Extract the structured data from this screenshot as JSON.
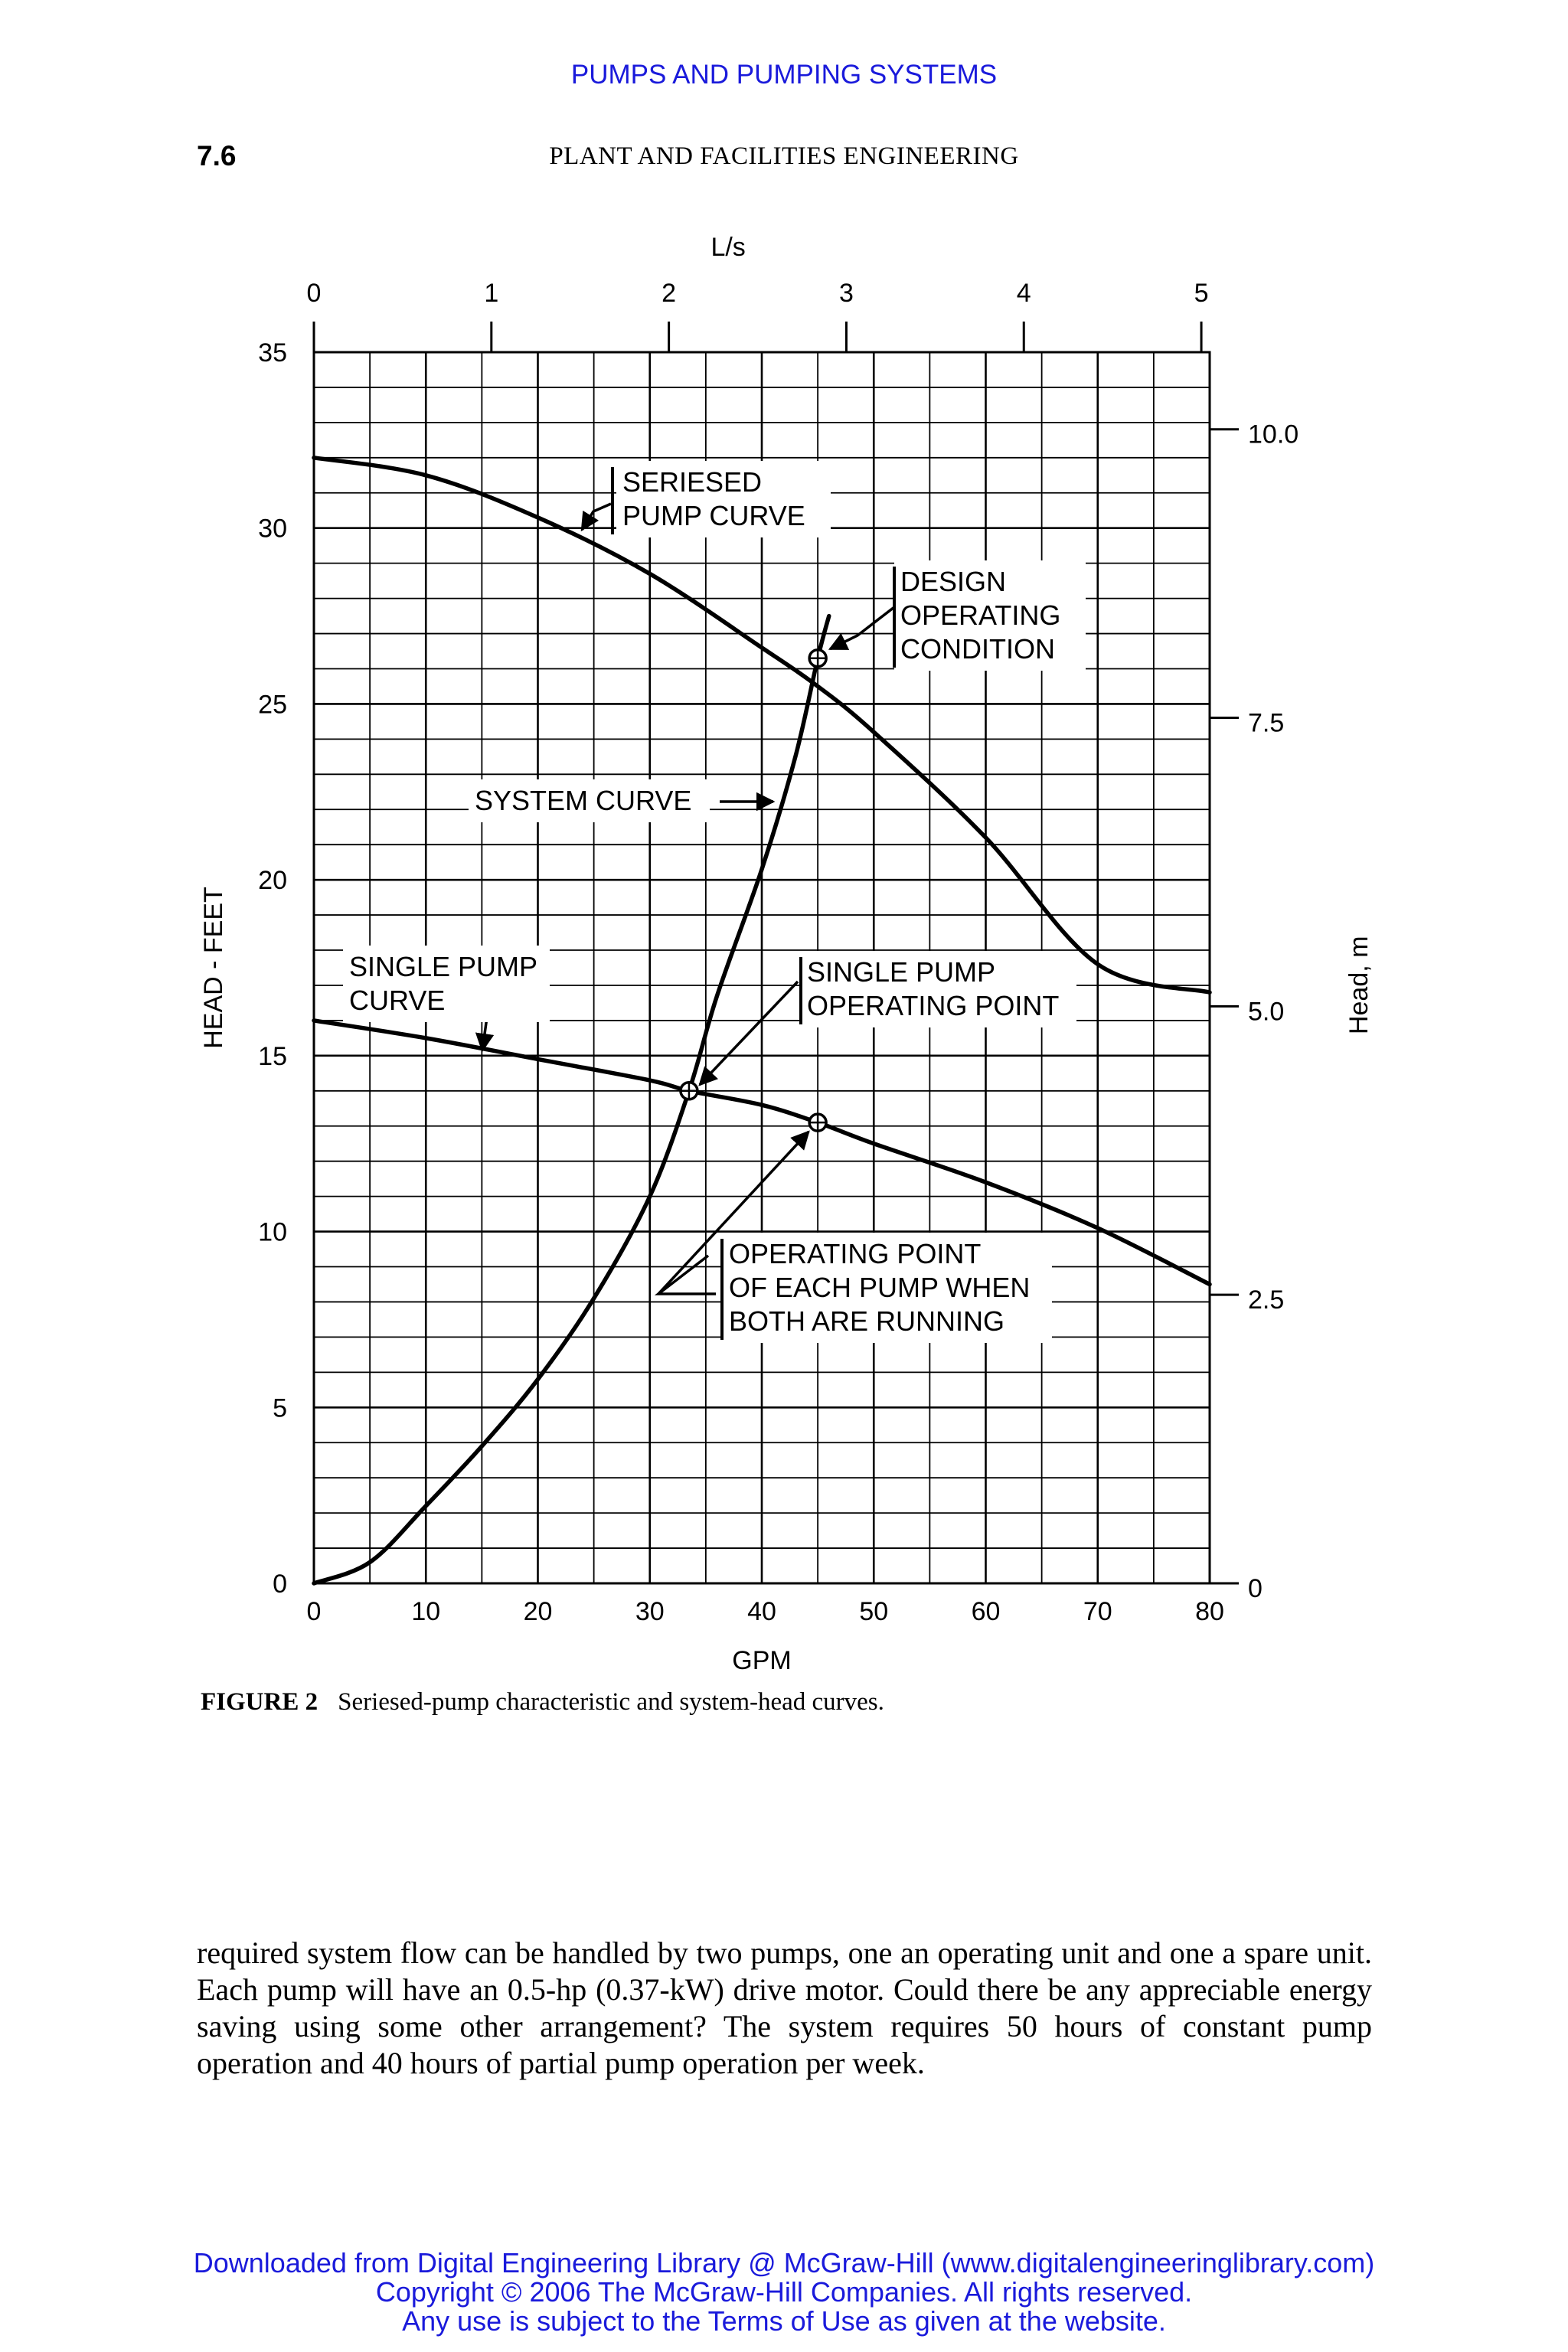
{
  "header": {
    "running_title": "PUMPS AND PUMPING SYSTEMS",
    "page_number": "7.6",
    "book_title": "PLANT AND FACILITIES ENGINEERING"
  },
  "colors": {
    "link_blue": "#1a1adb",
    "ink": "#000000"
  },
  "chart_data": {
    "type": "line",
    "title": "Seriesed-pump characteristic and system-head curves.",
    "xlabel": "GPM",
    "ylabel": "HEAD - FEET",
    "x2label": "L/s",
    "y2label": "Head, m",
    "xlim": [
      0,
      80
    ],
    "ylim": [
      0,
      35
    ],
    "grid": true,
    "x_ticks": [
      "0",
      "10",
      "20",
      "30",
      "40",
      "50",
      "60",
      "70",
      "80"
    ],
    "y_ticks": [
      "0",
      "5",
      "10",
      "15",
      "20",
      "25",
      "30",
      "35"
    ],
    "x2_ticks": [
      "0",
      "1",
      "2",
      "3",
      "4",
      "5"
    ],
    "y2_ticks": [
      "0",
      "2.5",
      "5.0",
      "7.5",
      "10.0"
    ],
    "series": [
      {
        "name": "Seriesed pump curve",
        "x": [
          0,
          10,
          20,
          30,
          40,
          45,
          50,
          60,
          70,
          80
        ],
        "y": [
          32,
          31.5,
          30.3,
          28.7,
          26.6,
          25.5,
          24.2,
          21.2,
          17.6,
          16.8
        ]
      },
      {
        "name": "Single pump curve",
        "x": [
          0,
          10,
          20,
          30,
          33.5,
          40,
          45,
          50,
          60,
          70,
          80
        ],
        "y": [
          16,
          15.5,
          14.9,
          14.3,
          14,
          13.6,
          13.1,
          12.5,
          11.4,
          10.1,
          8.5
        ]
      },
      {
        "name": "System curve",
        "x": [
          0,
          5,
          10,
          15,
          20,
          25,
          30,
          33.5,
          36,
          40,
          43,
          45,
          46
        ],
        "y": [
          0,
          0.6,
          2.2,
          3.9,
          5.8,
          8.1,
          11,
          14,
          16.7,
          20.3,
          23.5,
          26.3,
          27.5
        ]
      }
    ],
    "points": [
      {
        "name": "Design operating condition",
        "x": 45,
        "y": 26.3
      },
      {
        "name": "Single pump operating point",
        "x": 33.5,
        "y": 14
      },
      {
        "name": "Operating point of each pump when both are running",
        "x": 45,
        "y": 13.1
      }
    ],
    "annotations": {
      "seriesed_line1": "SERIESED",
      "seriesed_line2": "PUMP CURVE",
      "design_line1": "DESIGN",
      "design_line2": "OPERATING",
      "design_line3": "CONDITION",
      "system": "SYSTEM CURVE",
      "single_curve_line1": "SINGLE PUMP",
      "single_curve_line2": "CURVE",
      "single_point_line1": "SINGLE PUMP",
      "single_point_line2": "OPERATING POINT",
      "each_line1": "OPERATING POINT",
      "each_line2": "OF EACH PUMP WHEN",
      "each_line3": "BOTH ARE RUNNING"
    }
  },
  "caption": {
    "label": "FIGURE 2",
    "text": "Seriesed-pump characteristic and system-head curves."
  },
  "body": {
    "paragraph": "required system flow can be handled by two pumps, one an operating unit and one a spare unit. Each pump will have an 0.5-hp (0.37-kW) drive motor. Could there be any appreciable energy saving using some other arrangement? The system requires 50 hours of constant pump operation and 40 hours of partial pump operation per week."
  },
  "footer": {
    "line1": "Downloaded from Digital Engineering Library @ McGraw-Hill (www.digitalengineeringlibrary.com)",
    "line2": "Copyright © 2006 The McGraw-Hill Companies. All rights reserved.",
    "line3": "Any use is subject to the Terms of Use as given at the website."
  }
}
